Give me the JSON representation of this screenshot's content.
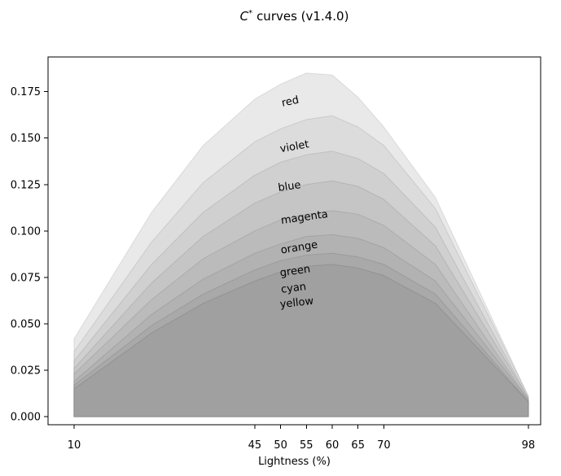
{
  "title": {
    "c": "C",
    "sup": "*",
    "rest": "curves (v1.4.0)"
  },
  "chart_data": {
    "type": "area",
    "title": "C* curves (v1.4.0)",
    "xlabel": "Lightness (%)",
    "ylabel": "",
    "xlim": [
      5,
      103
    ],
    "ylim": [
      0,
      0.1937
    ],
    "grid": false,
    "x_ticks": [
      10,
      45,
      50,
      55,
      60,
      65,
      70,
      98
    ],
    "y_tick_labels": [
      "0.000",
      "0.025",
      "0.050",
      "0.075",
      "0.100",
      "0.125",
      "0.150",
      "0.175"
    ],
    "x": [
      10,
      25,
      35,
      45,
      50,
      55,
      60,
      65,
      70,
      80,
      98
    ],
    "series": [
      {
        "name": "red",
        "color": "#e9e9e9",
        "label": "red",
        "label_x": 52.0,
        "label_y": 0.168,
        "label_rot": -12,
        "values": [
          0.042,
          0.11,
          0.146,
          0.171,
          0.179,
          0.185,
          0.184,
          0.172,
          0.156,
          0.118,
          0.011
        ]
      },
      {
        "name": "violet",
        "color": "#dcdcdc",
        "label": "violet",
        "label_x": 52.8,
        "label_y": 0.1437,
        "label_rot": -10,
        "values": [
          0.035,
          0.094,
          0.126,
          0.148,
          0.155,
          0.16,
          0.162,
          0.156,
          0.146,
          0.112,
          0.011
        ]
      },
      {
        "name": "blue",
        "color": "#d0d0d0",
        "label": "blue",
        "label_x": 51.8,
        "label_y": 0.1223,
        "label_rot": -8,
        "values": [
          0.03,
          0.082,
          0.11,
          0.13,
          0.137,
          0.141,
          0.143,
          0.139,
          0.131,
          0.102,
          0.01
        ]
      },
      {
        "name": "magenta",
        "color": "#c5c5c5",
        "label": "magenta",
        "label_x": 54.7,
        "label_y": 0.1056,
        "label_rot": -8,
        "values": [
          0.026,
          0.072,
          0.097,
          0.115,
          0.121,
          0.125,
          0.127,
          0.124,
          0.117,
          0.092,
          0.01
        ]
      },
      {
        "name": "orange",
        "color": "#bbbbbb",
        "label": "orange",
        "label_x": 53.7,
        "label_y": 0.0894,
        "label_rot": -9,
        "values": [
          0.023,
          0.063,
          0.085,
          0.1,
          0.106,
          0.109,
          0.111,
          0.109,
          0.103,
          0.082,
          0.009
        ]
      },
      {
        "name": "green",
        "color": "#b2b2b2",
        "label": "green",
        "label_x": 52.9,
        "label_y": 0.0767,
        "label_rot": -8,
        "values": [
          0.019,
          0.055,
          0.074,
          0.088,
          0.093,
          0.097,
          0.098,
          0.096,
          0.091,
          0.073,
          0.009
        ]
      },
      {
        "name": "cyan",
        "color": "#a9a9a9",
        "label": "cyan",
        "label_x": 52.6,
        "label_y": 0.0675,
        "label_rot": -7,
        "values": [
          0.017,
          0.049,
          0.066,
          0.079,
          0.084,
          0.087,
          0.088,
          0.086,
          0.082,
          0.066,
          0.008
        ]
      },
      {
        "name": "yellow",
        "color": "#a0a0a0",
        "label": "yellow",
        "label_x": 53.2,
        "label_y": 0.0596,
        "label_rot": -6,
        "values": [
          0.015,
          0.045,
          0.061,
          0.073,
          0.078,
          0.081,
          0.082,
          0.08,
          0.076,
          0.061,
          0.008
        ]
      }
    ],
    "axis_color": "#000000",
    "edge_line_color": "rgba(0,0,0,0.10)"
  }
}
